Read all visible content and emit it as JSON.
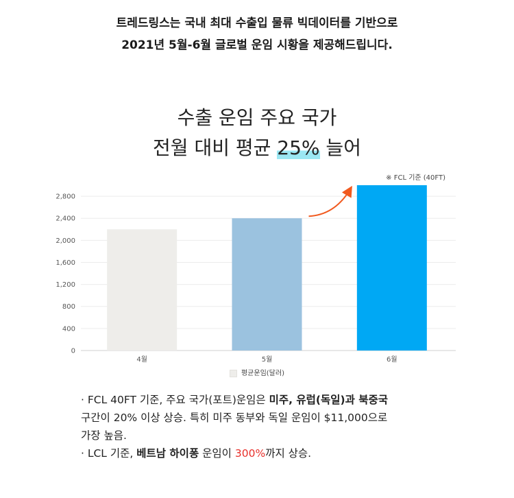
{
  "intro": {
    "line1": "트레드링스는 국내 최대 수출입 물류 빅데이터를 기반으로",
    "line2": "2021년 5월-6월 글로벌 운임 시황을 제공해드립니다."
  },
  "headline": {
    "line1": "수출 운임 주요 국가",
    "line2_pre": "전월 대비 평균 ",
    "line2_highlight": "25%",
    "line2_post": " 늘어"
  },
  "note": "※ FCL 기준 (40FT)",
  "colors": {
    "bar_apr": "#eeedea",
    "bar_may": "#9bc2df",
    "bar_jun": "#00a8f4",
    "arrow": "#f15a1f",
    "highlight": "#9be7f3",
    "red_text": "#e8302b"
  },
  "chart_data": {
    "type": "bar",
    "categories": [
      "4월",
      "5월",
      "6월"
    ],
    "series": [
      {
        "name": "평균운임(달러)",
        "values": [
          2200,
          2400,
          3000
        ]
      }
    ],
    "y_ticks": [
      "0",
      "400",
      "800",
      "1,200",
      "1,600",
      "2,000",
      "2,400",
      "2,800"
    ],
    "ylim": [
      0,
      3000
    ],
    "grid": true,
    "legend": "bottom-center",
    "annotation": "arrow from 5월 to 6월"
  },
  "bullets": {
    "b1_a": "· FCL 40FT 기준, 주요 국가(포트)운임은 ",
    "b1_b": "미주, 유럽(독일)과 북중국",
    "b1_c": "구간이 20% 이상 상승. 특히 미주 동부와 독일 운임이 $11,000으로",
    "b1_d": "가장 높음.",
    "b2_a": "· LCL 기준, ",
    "b2_b": "베트남 하이퐁",
    "b2_c": " 운임이 ",
    "b2_d": "300%",
    "b2_e": "까지 상승."
  }
}
